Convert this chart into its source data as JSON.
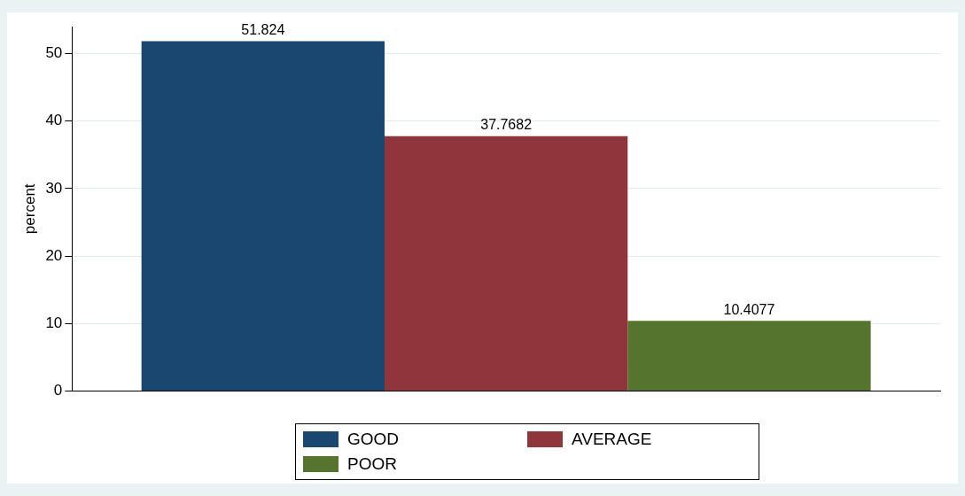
{
  "chart_data": {
    "type": "bar",
    "ylabel": "percent",
    "categories": [
      null
    ],
    "series": [
      {
        "name": "GOOD",
        "color": "#1a476f",
        "values": [
          51.824
        ]
      },
      {
        "name": "AVERAGE",
        "color": "#90353b",
        "values": [
          37.7682
        ]
      },
      {
        "name": "POOR",
        "color": "#55752f",
        "values": [
          10.4077
        ]
      }
    ],
    "ylim": [
      0,
      54
    ],
    "yticks": [
      0,
      10,
      20,
      30,
      40,
      50
    ],
    "grid": "y",
    "legend": "bottom",
    "data_labels": true
  }
}
